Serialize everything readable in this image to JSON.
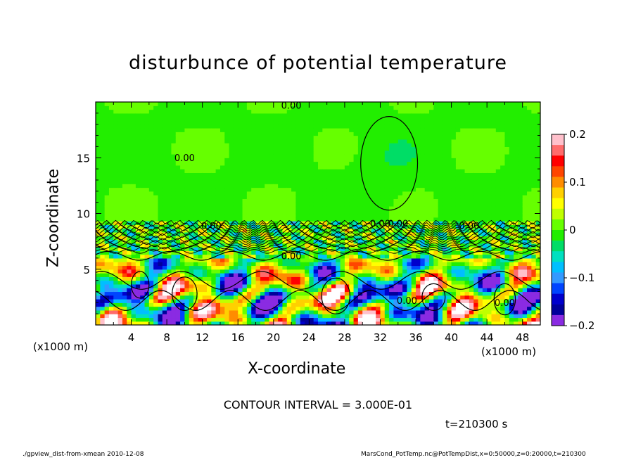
{
  "chart_data": {
    "type": "heatmap",
    "title": "disturbunce of potential temperature",
    "xlabel": "X-coordinate",
    "ylabel": "Z-coordinate",
    "x_unit_label": "(x1000 m)",
    "xlim": [
      0,
      50
    ],
    "ylim": [
      0,
      20
    ],
    "x_ticks": [
      4,
      8,
      12,
      16,
      20,
      24,
      28,
      32,
      36,
      40,
      44,
      48
    ],
    "y_ticks": [
      5,
      10,
      15
    ],
    "colorbar": {
      "ticks": [
        0.2,
        0.1,
        0,
        -0.1,
        -0.2
      ],
      "tick_labels": [
        "0.2",
        "0.1",
        "0",
        "−0.1",
        "−0.2"
      ],
      "range": [
        -0.2,
        0.2
      ],
      "colors": [
        "#ffc0cb",
        "#ff6b6b",
        "#ff0000",
        "#ff4500",
        "#ff8c00",
        "#ffd000",
        "#ffff00",
        "#c0ff00",
        "#66ff00",
        "#22ee00",
        "#00dd66",
        "#00e0c0",
        "#00bfff",
        "#3399ff",
        "#0044ff",
        "#0000cd",
        "#00009b",
        "#8a2be2"
      ]
    },
    "contour_labels": [
      "0.00",
      "0.00",
      "0.00",
      "0.00",
      "0.00",
      "0.00",
      "0.00",
      "0.00",
      "0.00"
    ],
    "contour_interval_text": "CONTOUR INTERVAL = 3.000E-01",
    "time_text": "t=210300 s"
  },
  "footer": {
    "left": "./gpview_dist-from-xmean  2010-12-08",
    "right": "MarsCond_PotTemp.nc@PotTempDist,x=0:50000,z=0:20000,t=210300"
  }
}
